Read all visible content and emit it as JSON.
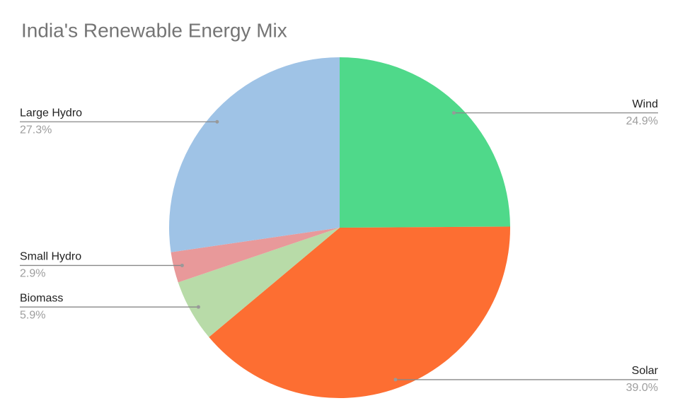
{
  "chart_data": {
    "type": "pie",
    "title": "India's Renewable Energy Mix",
    "categories": [
      "Wind",
      "Solar",
      "Biomass",
      "Small Hydro",
      "Large Hydro"
    ],
    "values": [
      24.9,
      39.0,
      5.9,
      2.9,
      27.3
    ],
    "value_labels": [
      "24.9%",
      "39.0%",
      "5.9%",
      "2.9%",
      "27.3%"
    ],
    "colors": [
      "#4fd98a",
      "#fd6e32",
      "#b8dba8",
      "#e8999a",
      "#9fc3e6"
    ]
  }
}
